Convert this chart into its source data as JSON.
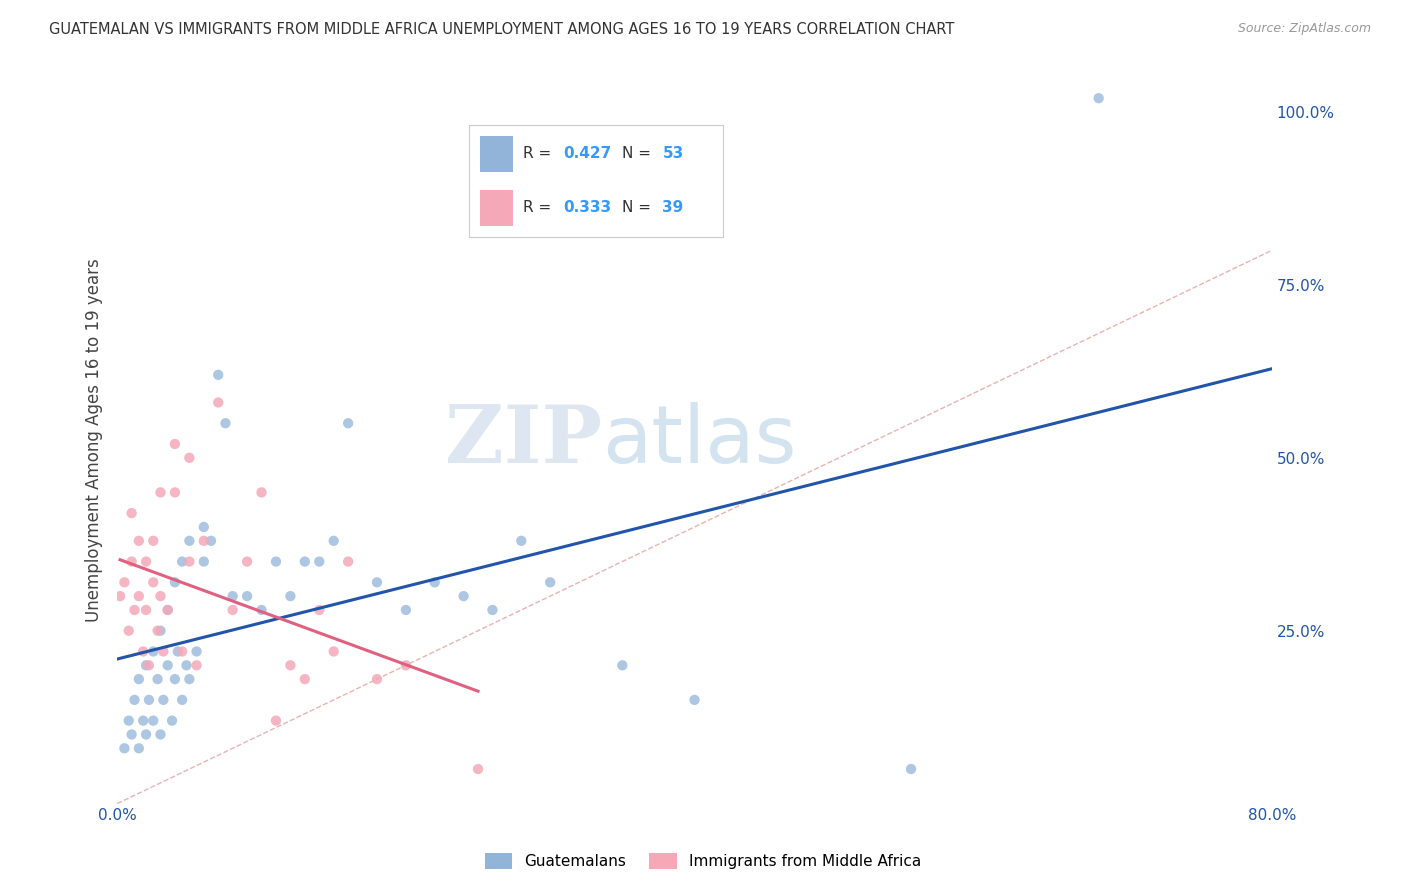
{
  "title": "GUATEMALAN VS IMMIGRANTS FROM MIDDLE AFRICA UNEMPLOYMENT AMONG AGES 16 TO 19 YEARS CORRELATION CHART",
  "source": "Source: ZipAtlas.com",
  "ylabel": "Unemployment Among Ages 16 to 19 years",
  "xlim": [
    0.0,
    0.8
  ],
  "ylim": [
    0.0,
    1.05
  ],
  "xticks": [
    0.0,
    0.2,
    0.4,
    0.6,
    0.8
  ],
  "xticklabels": [
    "0.0%",
    "",
    "",
    "",
    "80.0%"
  ],
  "yticks": [
    0.0,
    0.25,
    0.5,
    0.75,
    1.0
  ],
  "yticklabels": [
    "",
    "25.0%",
    "50.0%",
    "75.0%",
    "100.0%"
  ],
  "blue_color": "#92B4D9",
  "pink_color": "#F4A8B8",
  "blue_line_color": "#2255AA",
  "pink_line_color": "#E06080",
  "diag_color": "#E8AAAA",
  "R_blue": 0.427,
  "N_blue": 53,
  "R_pink": 0.333,
  "N_pink": 39,
  "legend_R_color": "#333333",
  "legend_N_color": "#3399FF",
  "watermark_zip": "ZIP",
  "watermark_atlas": "atlas",
  "blue_scatter_x": [
    0.005,
    0.008,
    0.01,
    0.012,
    0.015,
    0.015,
    0.018,
    0.02,
    0.02,
    0.022,
    0.025,
    0.025,
    0.028,
    0.03,
    0.03,
    0.032,
    0.035,
    0.035,
    0.038,
    0.04,
    0.04,
    0.042,
    0.045,
    0.045,
    0.048,
    0.05,
    0.05,
    0.055,
    0.06,
    0.06,
    0.065,
    0.07,
    0.075,
    0.08,
    0.09,
    0.1,
    0.11,
    0.12,
    0.13,
    0.14,
    0.15,
    0.16,
    0.18,
    0.2,
    0.22,
    0.24,
    0.26,
    0.28,
    0.3,
    0.35,
    0.4,
    0.55,
    0.68
  ],
  "blue_scatter_y": [
    0.08,
    0.12,
    0.1,
    0.15,
    0.08,
    0.18,
    0.12,
    0.1,
    0.2,
    0.15,
    0.12,
    0.22,
    0.18,
    0.1,
    0.25,
    0.15,
    0.2,
    0.28,
    0.12,
    0.18,
    0.32,
    0.22,
    0.15,
    0.35,
    0.2,
    0.18,
    0.38,
    0.22,
    0.35,
    0.4,
    0.38,
    0.62,
    0.55,
    0.3,
    0.3,
    0.28,
    0.35,
    0.3,
    0.35,
    0.35,
    0.38,
    0.55,
    0.32,
    0.28,
    0.32,
    0.3,
    0.28,
    0.38,
    0.32,
    0.2,
    0.15,
    0.05,
    1.02
  ],
  "pink_scatter_x": [
    0.002,
    0.005,
    0.008,
    0.01,
    0.01,
    0.012,
    0.015,
    0.015,
    0.018,
    0.02,
    0.02,
    0.022,
    0.025,
    0.025,
    0.028,
    0.03,
    0.03,
    0.032,
    0.035,
    0.04,
    0.04,
    0.045,
    0.05,
    0.05,
    0.055,
    0.06,
    0.07,
    0.08,
    0.09,
    0.1,
    0.11,
    0.12,
    0.13,
    0.14,
    0.15,
    0.16,
    0.18,
    0.2,
    0.25
  ],
  "pink_scatter_y": [
    0.3,
    0.32,
    0.25,
    0.35,
    0.42,
    0.28,
    0.3,
    0.38,
    0.22,
    0.28,
    0.35,
    0.2,
    0.32,
    0.38,
    0.25,
    0.3,
    0.45,
    0.22,
    0.28,
    0.52,
    0.45,
    0.22,
    0.35,
    0.5,
    0.2,
    0.38,
    0.58,
    0.28,
    0.35,
    0.45,
    0.12,
    0.2,
    0.18,
    0.28,
    0.22,
    0.35,
    0.18,
    0.2,
    0.05
  ],
  "background_color": "#FFFFFF",
  "grid_color": "#DDDDDD"
}
